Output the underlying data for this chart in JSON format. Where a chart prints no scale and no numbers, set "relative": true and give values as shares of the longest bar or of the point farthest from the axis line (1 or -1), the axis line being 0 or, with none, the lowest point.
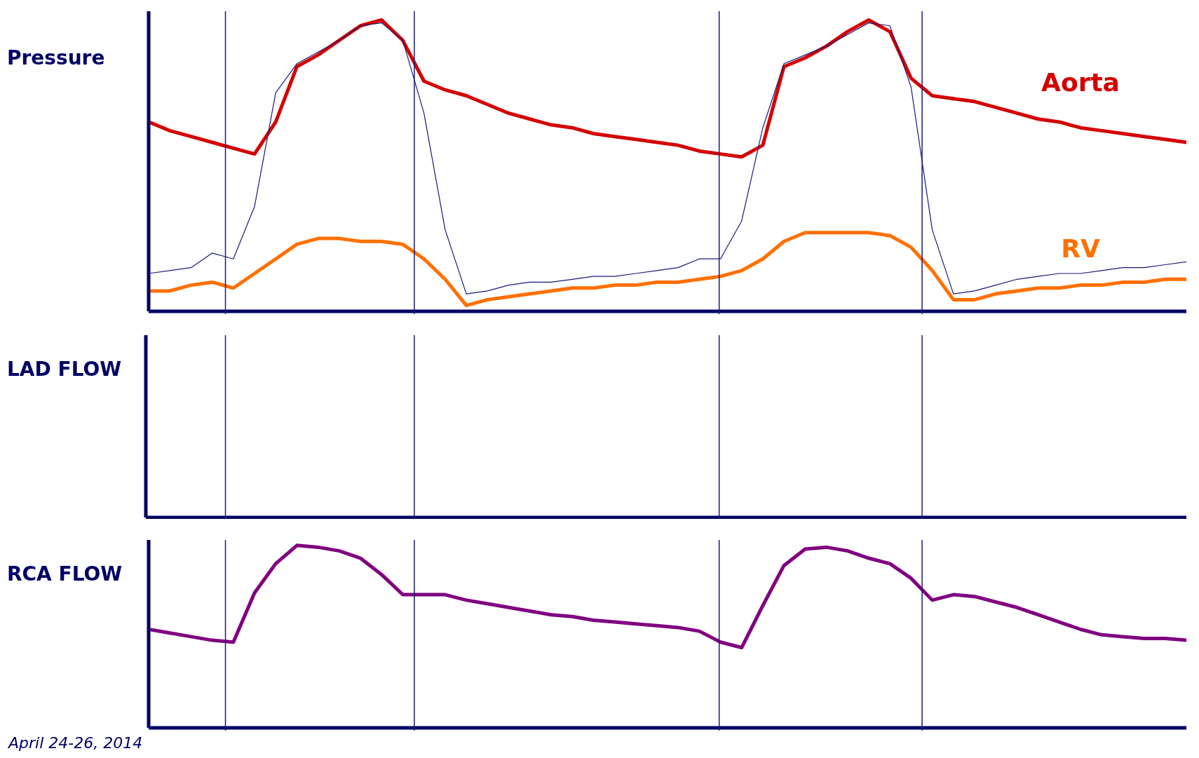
{
  "chart_data": [
    {
      "type": "line",
      "ylabel": "Pressure",
      "relative": true,
      "marker": "none",
      "line_style": "solid",
      "categories": [
        null,
        null,
        null,
        null,
        null,
        null,
        null,
        null,
        null,
        null,
        null,
        null,
        null,
        null,
        null,
        null,
        null,
        null,
        null,
        null,
        null,
        null,
        null,
        null,
        null,
        null,
        null,
        null,
        null,
        null,
        null,
        null,
        null,
        null,
        null,
        null,
        null,
        null,
        null,
        null,
        null,
        null,
        null,
        null,
        null,
        null,
        null,
        null,
        null,
        null
      ],
      "series": [
        {
          "name": "Aorta",
          "color": "#d40000",
          "values": [
            0.65,
            0.62,
            0.6,
            0.58,
            0.56,
            0.54,
            0.65,
            0.84,
            0.88,
            0.93,
            0.98,
            1.0,
            0.93,
            0.79,
            0.76,
            0.74,
            0.71,
            0.68,
            0.66,
            0.64,
            0.63,
            0.61,
            0.6,
            0.59,
            0.58,
            0.57,
            0.55,
            0.54,
            0.53,
            0.57,
            0.84,
            0.87,
            0.91,
            0.96,
            1.0,
            0.96,
            0.8,
            0.74,
            0.73,
            0.72,
            0.7,
            0.68,
            0.66,
            0.65,
            0.63,
            0.62,
            0.61,
            0.6,
            0.59,
            0.58
          ]
        },
        {
          "name": "RV",
          "color": "#ff7000",
          "values": [
            0.07,
            0.07,
            0.09,
            0.1,
            0.08,
            0.13,
            0.18,
            0.23,
            0.25,
            0.25,
            0.24,
            0.24,
            0.23,
            0.18,
            0.11,
            0.02,
            0.04,
            0.05,
            0.06,
            0.07,
            0.08,
            0.08,
            0.09,
            0.09,
            0.1,
            0.1,
            0.11,
            0.12,
            0.14,
            0.18,
            0.24,
            0.27,
            0.27,
            0.27,
            0.27,
            0.26,
            0.22,
            0.14,
            0.04,
            0.04,
            0.06,
            0.07,
            0.08,
            0.08,
            0.09,
            0.09,
            0.1,
            0.1,
            0.11,
            0.11
          ]
        },
        {
          "color": "#1a1a7a",
          "values": [
            0.13,
            0.14,
            0.15,
            0.2,
            0.18,
            0.36,
            0.75,
            0.85,
            0.89,
            0.93,
            0.98,
            0.99,
            0.93,
            0.68,
            0.28,
            0.06,
            0.07,
            0.09,
            0.1,
            0.1,
            0.11,
            0.12,
            0.12,
            0.13,
            0.14,
            0.15,
            0.18,
            0.18,
            0.31,
            0.63,
            0.85,
            0.88,
            0.91,
            0.95,
            0.99,
            0.98,
            0.77,
            0.28,
            0.06,
            0.07,
            0.09,
            0.11,
            0.12,
            0.13,
            0.13,
            0.14,
            0.15,
            0.15,
            0.16,
            0.17
          ]
        }
      ]
    },
    {
      "type": "other",
      "ylabel": "LAD FLOW"
    },
    {
      "type": "line",
      "ylabel": "RCA FLOW",
      "relative": true,
      "marker": "none",
      "line_style": "solid",
      "categories": [
        null,
        null,
        null,
        null,
        null,
        null,
        null,
        null,
        null,
        null,
        null,
        null,
        null,
        null,
        null,
        null,
        null,
        null,
        null,
        null,
        null,
        null,
        null,
        null,
        null,
        null,
        null,
        null,
        null,
        null,
        null,
        null,
        null,
        null,
        null,
        null,
        null,
        null,
        null,
        null,
        null,
        null,
        null,
        null,
        null,
        null,
        null,
        null,
        null,
        null
      ],
      "series": [
        {
          "color": "#800080",
          "values": [
            0.54,
            0.52,
            0.5,
            0.48,
            0.47,
            0.74,
            0.9,
            1.0,
            0.99,
            0.97,
            0.93,
            0.84,
            0.73,
            0.73,
            0.73,
            0.7,
            0.68,
            0.66,
            0.64,
            0.62,
            0.61,
            0.59,
            0.58,
            0.57,
            0.56,
            0.55,
            0.53,
            0.47,
            0.44,
            0.67,
            0.89,
            0.98,
            0.99,
            0.97,
            0.93,
            0.9,
            0.82,
            0.7,
            0.73,
            0.72,
            0.69,
            0.66,
            0.62,
            0.58,
            0.54,
            0.51,
            0.5,
            0.49,
            0.49,
            0.48
          ]
        }
      ],
      "annotations": [
        "April 24-26, 2014"
      ]
    }
  ]
}
